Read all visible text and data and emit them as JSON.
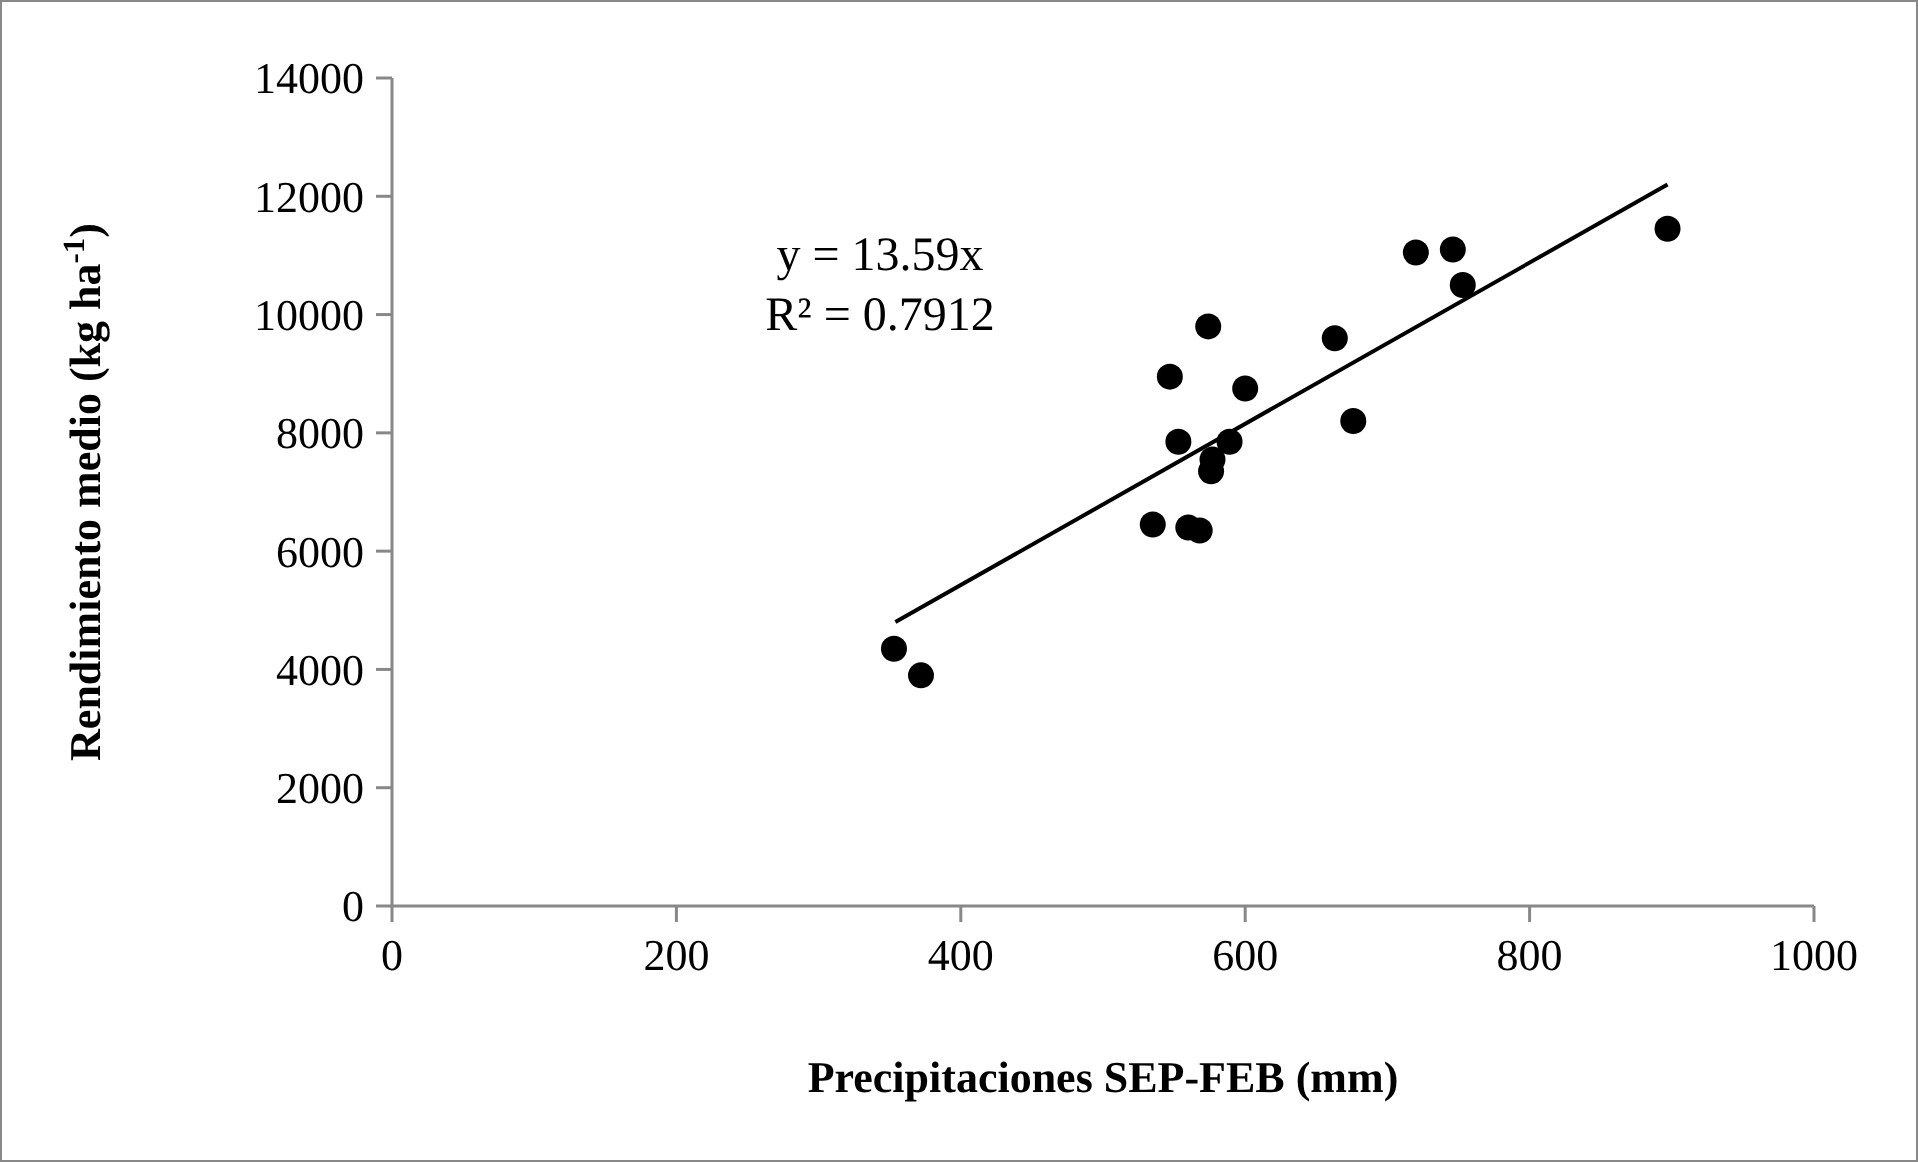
{
  "chart_data": {
    "type": "scatter",
    "xlabel": "Precipitaciones SEP-FEB (mm)",
    "ylabel": "Rendimiento medio (kg ha$^{-1}$)",
    "xlim": [
      0,
      1000
    ],
    "xticks": [
      0,
      200,
      400,
      600,
      800,
      1000
    ],
    "ylim": [
      0,
      14000
    ],
    "yticks": [
      0,
      2000,
      4000,
      6000,
      8000,
      10000,
      12000,
      14000
    ],
    "grid": false,
    "marker": "circle",
    "series": [
      {
        "color": "#000000",
        "x": [
          353,
          372,
          535,
          560,
          568,
          553,
          576,
          577,
          589,
          547,
          574,
          600,
          663,
          676,
          753,
          720,
          746,
          897
        ],
        "values": [
          4350,
          3900,
          6450,
          6400,
          6350,
          7850,
          7350,
          7550,
          7850,
          8950,
          9800,
          8750,
          9600,
          8200,
          10500,
          11050,
          11100,
          11450
        ]
      },
      {
        "type": "line",
        "color": "#000000",
        "line_style": "solid",
        "marker": "none",
        "x": [
          354,
          897
        ],
        "values": [
          4800,
          12200
        ]
      }
    ],
    "annotations": [
      "y = 13.59x",
      "R² = 0.7912"
    ]
  }
}
